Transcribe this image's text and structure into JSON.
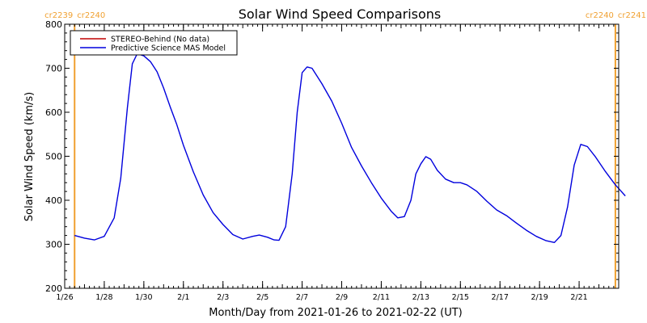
{
  "colors": {
    "background": "#ffffff",
    "axes": "#000000",
    "carrington_marker": "#f0a030",
    "stereo_series": "#c00000",
    "mas_series": "#0000dd"
  },
  "chart_data": {
    "type": "line",
    "title": "Solar Wind Speed Comparisons",
    "xlabel": "Month/Day from 2021-01-26 to 2021-02-22 (UT)",
    "ylabel": "Solar Wind Speed (km/s)",
    "xlim": [
      "2021-01-26",
      "2021-02-23"
    ],
    "ylim": [
      200,
      800
    ],
    "y_ticks": [
      200,
      300,
      400,
      500,
      600,
      700,
      800
    ],
    "x_ticks": [
      {
        "date": "2021-01-26",
        "label": "1/26"
      },
      {
        "date": "2021-01-28",
        "label": "1/28"
      },
      {
        "date": "2021-01-30",
        "label": "1/30"
      },
      {
        "date": "2021-02-01",
        "label": "2/1"
      },
      {
        "date": "2021-02-03",
        "label": "2/3"
      },
      {
        "date": "2021-02-05",
        "label": "2/5"
      },
      {
        "date": "2021-02-07",
        "label": "2/7"
      },
      {
        "date": "2021-02-09",
        "label": "2/9"
      },
      {
        "date": "2021-02-11",
        "label": "2/11"
      },
      {
        "date": "2021-02-13",
        "label": "2/13"
      },
      {
        "date": "2021-02-15",
        "label": "2/15"
      },
      {
        "date": "2021-02-17",
        "label": "2/17"
      },
      {
        "date": "2021-02-19",
        "label": "2/19"
      },
      {
        "date": "2021-02-21",
        "label": "2/21"
      }
    ],
    "carrington_markers": [
      {
        "date": "2021-01-26 12:00",
        "left_label": "cr2239",
        "right_label": "cr2240"
      },
      {
        "date": "2021-02-22 20:00",
        "left_label": "cr2240",
        "right_label": "cr2241"
      }
    ],
    "legend": {
      "placement": "top-left",
      "entries": [
        {
          "label": "STEREO-Behind (No data)",
          "series": "stereo"
        },
        {
          "label": "Predictive Science MAS Model",
          "series": "mas"
        }
      ]
    },
    "series": [
      {
        "name": "STEREO-Behind (No data)",
        "key": "stereo",
        "points": []
      },
      {
        "name": "Predictive Science MAS Model",
        "key": "mas",
        "points": [
          [
            "2021-01-26 12:00",
            320
          ],
          [
            "2021-01-27 00:00",
            314
          ],
          [
            "2021-01-27 12:00",
            310
          ],
          [
            "2021-01-28 00:00",
            318
          ],
          [
            "2021-01-28 12:00",
            360
          ],
          [
            "2021-01-28 20:00",
            450
          ],
          [
            "2021-01-29 04:00",
            610
          ],
          [
            "2021-01-29 10:00",
            710
          ],
          [
            "2021-01-29 16:00",
            733
          ],
          [
            "2021-01-30 00:00",
            728
          ],
          [
            "2021-01-30 08:00",
            715
          ],
          [
            "2021-01-30 16:00",
            692
          ],
          [
            "2021-01-31 00:00",
            655
          ],
          [
            "2021-01-31 08:00",
            612
          ],
          [
            "2021-01-31 16:00",
            572
          ],
          [
            "2021-02-01 00:00",
            525
          ],
          [
            "2021-02-01 12:00",
            465
          ],
          [
            "2021-02-02 00:00",
            412
          ],
          [
            "2021-02-02 12:00",
            372
          ],
          [
            "2021-02-03 00:00",
            345
          ],
          [
            "2021-02-03 12:00",
            322
          ],
          [
            "2021-02-04 00:00",
            312
          ],
          [
            "2021-02-04 12:00",
            318
          ],
          [
            "2021-02-04 20:00",
            321
          ],
          [
            "2021-02-05 06:00",
            316
          ],
          [
            "2021-02-05 14:00",
            310
          ],
          [
            "2021-02-05 20:00",
            309
          ],
          [
            "2021-02-06 04:00",
            340
          ],
          [
            "2021-02-06 12:00",
            460
          ],
          [
            "2021-02-06 18:00",
            600
          ],
          [
            "2021-02-07 00:00",
            690
          ],
          [
            "2021-02-07 06:00",
            703
          ],
          [
            "2021-02-07 12:00",
            700
          ],
          [
            "2021-02-08 00:00",
            665
          ],
          [
            "2021-02-08 12:00",
            625
          ],
          [
            "2021-02-09 00:00",
            575
          ],
          [
            "2021-02-09 12:00",
            520
          ],
          [
            "2021-02-10 00:00",
            478
          ],
          [
            "2021-02-10 12:00",
            440
          ],
          [
            "2021-02-11 00:00",
            405
          ],
          [
            "2021-02-11 12:00",
            375
          ],
          [
            "2021-02-11 20:00",
            360
          ],
          [
            "2021-02-12 04:00",
            363
          ],
          [
            "2021-02-12 12:00",
            400
          ],
          [
            "2021-02-12 18:00",
            460
          ],
          [
            "2021-02-13 00:00",
            483
          ],
          [
            "2021-02-13 06:00",
            499
          ],
          [
            "2021-02-13 12:00",
            493
          ],
          [
            "2021-02-13 20:00",
            468
          ],
          [
            "2021-02-14 06:00",
            448
          ],
          [
            "2021-02-14 16:00",
            440
          ],
          [
            "2021-02-15 00:00",
            440
          ],
          [
            "2021-02-15 08:00",
            435
          ],
          [
            "2021-02-15 20:00",
            420
          ],
          [
            "2021-02-16 08:00",
            398
          ],
          [
            "2021-02-16 20:00",
            378
          ],
          [
            "2021-02-17 08:00",
            365
          ],
          [
            "2021-02-17 20:00",
            348
          ],
          [
            "2021-02-18 08:00",
            332
          ],
          [
            "2021-02-18 20:00",
            318
          ],
          [
            "2021-02-19 08:00",
            308
          ],
          [
            "2021-02-19 18:00",
            304
          ],
          [
            "2021-02-20 02:00",
            320
          ],
          [
            "2021-02-20 10:00",
            385
          ],
          [
            "2021-02-20 18:00",
            480
          ],
          [
            "2021-02-21 02:00",
            527
          ],
          [
            "2021-02-21 10:00",
            522
          ],
          [
            "2021-02-21 20:00",
            498
          ],
          [
            "2021-02-22 08:00",
            465
          ],
          [
            "2021-02-22 20:00",
            435
          ],
          [
            "2021-02-23 08:00",
            410
          ]
        ]
      }
    ]
  }
}
